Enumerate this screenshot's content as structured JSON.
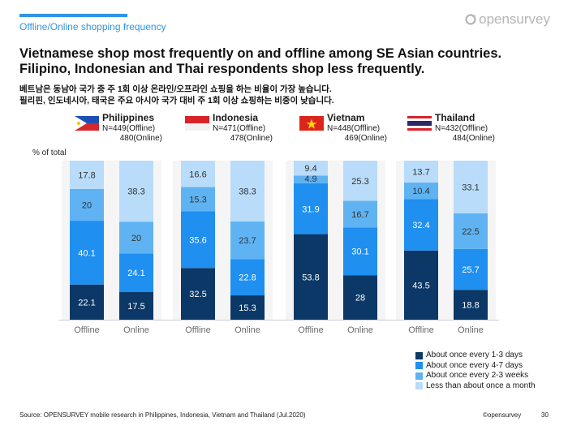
{
  "header": {
    "section": "Offline/Online shopping frequency",
    "logo_text": "opensurvey"
  },
  "title": "Vietnamese shop most frequently on and offline among SE Asian countries. Filipino, Indonesian and Thai respondents shop less frequently.",
  "subtitle": {
    "line1": "베트남은 동남아 국가 중 주 1회 이상 온라인/오프라인 쇼핑을 하는 비율이 가장 높습니다.",
    "line2": "필리핀, 인도네시아, 태국은 주요 아시아 국가 대비 주 1회 이상 쇼핑하는 비중이 낮습니다."
  },
  "countries": [
    {
      "name": "Philippines",
      "n_offline": "N=449(Offline)",
      "n_online": "480(Online)"
    },
    {
      "name": "Indonesia",
      "n_offline": "N=471(Offline)",
      "n_online": "478(Online)"
    },
    {
      "name": "Vietnam",
      "n_offline": "N=448(Offline)",
      "n_online": "469(Online)"
    },
    {
      "name": "Thailand",
      "n_offline": "N=432(Offline)",
      "n_online": "484(Online)"
    }
  ],
  "chart_data": {
    "type": "bar",
    "stacked": true,
    "percent_stacked": true,
    "ylabel": "% of total",
    "ylim": [
      0,
      100
    ],
    "grid": false,
    "legend_position": "bottom-right",
    "colors": [
      "#0b3866",
      "#1f8ff0",
      "#5fb3f3",
      "#b8dcfa"
    ],
    "series_names": [
      "About once every 1-3 days",
      "About once every 4-7 days",
      "About once every 2-3 weeks",
      "Less than about once a month"
    ],
    "groups": [
      {
        "country": "Philippines",
        "bars": [
          {
            "label": "Offline",
            "values": [
              22.1,
              40.1,
              20,
              17.8
            ]
          },
          {
            "label": "Online",
            "values": [
              17.5,
              24.1,
              20,
              38.3
            ]
          }
        ]
      },
      {
        "country": "Indonesia",
        "bars": [
          {
            "label": "Offline",
            "values": [
              32.5,
              35.6,
              15.3,
              16.6
            ]
          },
          {
            "label": "Online",
            "values": [
              15.3,
              22.8,
              23.7,
              38.3
            ]
          }
        ]
      },
      {
        "country": "Vietnam",
        "bars": [
          {
            "label": "Offline",
            "values": [
              53.8,
              31.9,
              4.9,
              9.4
            ]
          },
          {
            "label": "Online",
            "values": [
              28,
              30.1,
              16.7,
              25.3
            ]
          }
        ]
      },
      {
        "country": "Thailand",
        "bars": [
          {
            "label": "Offline",
            "values": [
              43.5,
              32.4,
              10.4,
              13.7
            ]
          },
          {
            "label": "Online",
            "values": [
              18.8,
              25.7,
              22.5,
              33.1
            ]
          }
        ]
      }
    ]
  },
  "legend": [
    {
      "label": "About once every 1-3 days",
      "color": "#0b3866"
    },
    {
      "label": "About once every 4-7 days",
      "color": "#1f8ff0"
    },
    {
      "label": "About once every 2-3 weeks",
      "color": "#5fb3f3"
    },
    {
      "label": "Less than about once a month",
      "color": "#b8dcfa"
    }
  ],
  "footer": {
    "source": "Source: OPENSURVEY mobile research in Philippines, Indonesia, Vietnam and Thailand (Jul.2020)",
    "copyright": "©opensurvey",
    "page": "30"
  }
}
